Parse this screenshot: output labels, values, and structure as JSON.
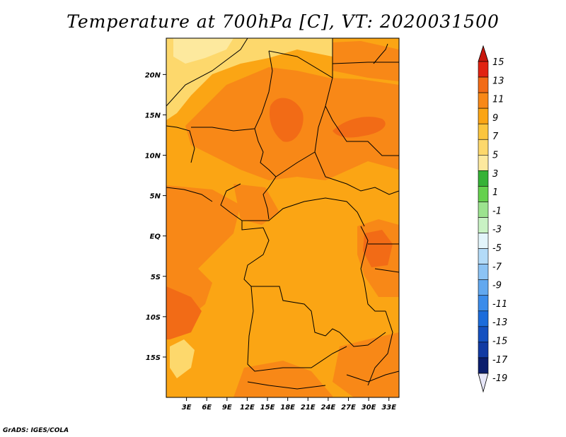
{
  "title": "Temperature at 700hPa [C], VT: 2020031500",
  "credit": "GrADS: IGES/COLA",
  "map": {
    "lat_range": [
      -20,
      24.5
    ],
    "lon_range": [
      0,
      34.5
    ],
    "lat_ticks": [
      {
        "lat": 20,
        "label": "20N"
      },
      {
        "lat": 15,
        "label": "15N"
      },
      {
        "lat": 10,
        "label": "10N"
      },
      {
        "lat": 5,
        "label": "5N"
      },
      {
        "lat": 0,
        "label": "EQ"
      },
      {
        "lat": -5,
        "label": "5S"
      },
      {
        "lat": -10,
        "label": "10S"
      },
      {
        "lat": -15,
        "label": "15S"
      }
    ],
    "lon_ticks": [
      {
        "lon": 3,
        "label": "3E"
      },
      {
        "lon": 6,
        "label": "6E"
      },
      {
        "lon": 9,
        "label": "9E"
      },
      {
        "lon": 12,
        "label": "12E"
      },
      {
        "lon": 15,
        "label": "15E"
      },
      {
        "lon": 18,
        "label": "18E"
      },
      {
        "lon": 21,
        "label": "21E"
      },
      {
        "lon": 24,
        "label": "24E"
      },
      {
        "lon": 27,
        "label": "27E"
      },
      {
        "lon": 30,
        "label": "30E"
      },
      {
        "lon": 33,
        "label": "33E"
      }
    ],
    "colors": {
      "bg_orange": "#fba514",
      "warm_orange": "#f88817",
      "hot_orange": "#f26b16",
      "light_yellow": "#fdd86c",
      "pale_yellow": "#fde99e",
      "border_line": "#000000"
    }
  },
  "colorbar": {
    "labels": [
      "15",
      "13",
      "11",
      "9",
      "7",
      "5",
      "3",
      "1",
      "-1",
      "-3",
      "-5",
      "-7",
      "-9",
      "-11",
      "-13",
      "-15",
      "-17",
      "-19"
    ],
    "colors": [
      "#e12312",
      "#f26b16",
      "#f88817",
      "#fba514",
      "#fbc53d",
      "#fdd86c",
      "#fde99e",
      "#35b236",
      "#65d14e",
      "#9ce38f",
      "#c9f2c4",
      "#e3f5fb",
      "#b3dbf8",
      "#8cc3f4",
      "#62a8ef",
      "#3b8cea",
      "#1c6cdb",
      "#1450c0",
      "#113aa3",
      "#0a1d6d"
    ],
    "top_arrow_color": "#c8170d",
    "bottom_arrow_color": "#e6e6f8"
  }
}
